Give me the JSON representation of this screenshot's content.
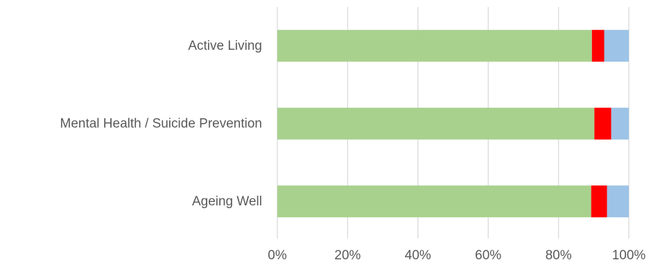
{
  "chart_data": {
    "type": "bar",
    "orientation": "horizontal",
    "stacked": "percent",
    "categories": [
      "Active Living",
      "Mental Health / Suicide Prevention",
      "Ageing Well"
    ],
    "series": [
      {
        "color": "#a9d18e",
        "values": [
          89.5,
          90.2,
          89.3
        ]
      },
      {
        "color": "#ff0000",
        "values": [
          3.5,
          4.8,
          4.5
        ]
      },
      {
        "color": "#9dc3e6",
        "values": [
          7.0,
          5.0,
          6.2
        ]
      }
    ],
    "x_ticks": [
      "0%",
      "20%",
      "40%",
      "60%",
      "80%",
      "100%"
    ],
    "xlim": [
      0,
      100
    ],
    "grid": "vertical",
    "legend": "none",
    "title": "",
    "xlabel": "",
    "ylabel": ""
  }
}
